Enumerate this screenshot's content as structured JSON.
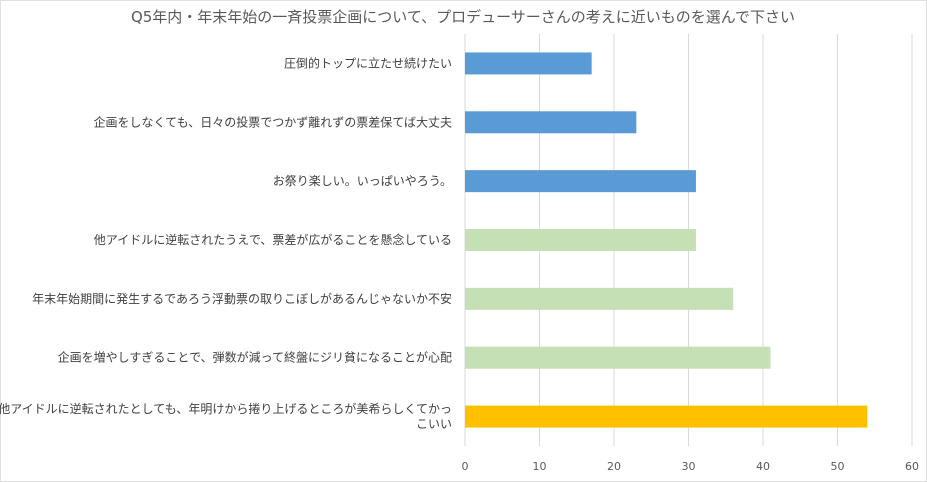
{
  "chart_data": {
    "type": "bar",
    "orientation": "horizontal",
    "title": "Q5年内・年末年始の一斉投票企画について、プロデューサーさんの考えに近いものを選んで下さい",
    "xlabel": "",
    "ylabel": "",
    "xlim": [
      0,
      60
    ],
    "x_ticks": [
      "0",
      "10",
      "20",
      "30",
      "40",
      "50",
      "60"
    ],
    "grid": true,
    "legend": "none",
    "categories": [
      {
        "lines": [
          "圧倒的トップに立たせ続けたい"
        ],
        "value": 17,
        "color": "#5b9bd5"
      },
      {
        "lines": [
          "企画をしなくても、日々の投票でつかず離れずの票差保てば大丈夫"
        ],
        "value": 23,
        "color": "#5b9bd5"
      },
      {
        "lines": [
          "お祭り楽しい。いっぱいやろう。"
        ],
        "value": 31,
        "color": "#5b9bd5"
      },
      {
        "lines": [
          "他アイドルに逆転されたうえで、票差が広がることを懸念している"
        ],
        "value": 31,
        "color": "#c5e0b4"
      },
      {
        "lines": [
          "年末年始期間に発生するであろう浮動票の取りこぼしがあるんじゃないか不安"
        ],
        "value": 36,
        "color": "#c5e0b4"
      },
      {
        "lines": [
          "企画を増やしすぎることで、弾数が減って終盤にジリ貧になることが心配"
        ],
        "value": 41,
        "color": "#c5e0b4"
      },
      {
        "lines": [
          "他アイドルに逆転されたとしても、年明けから捲り上げるところが美希らしくてかっ",
          "こいい"
        ],
        "value": 54,
        "color": "#ffc000"
      }
    ]
  }
}
